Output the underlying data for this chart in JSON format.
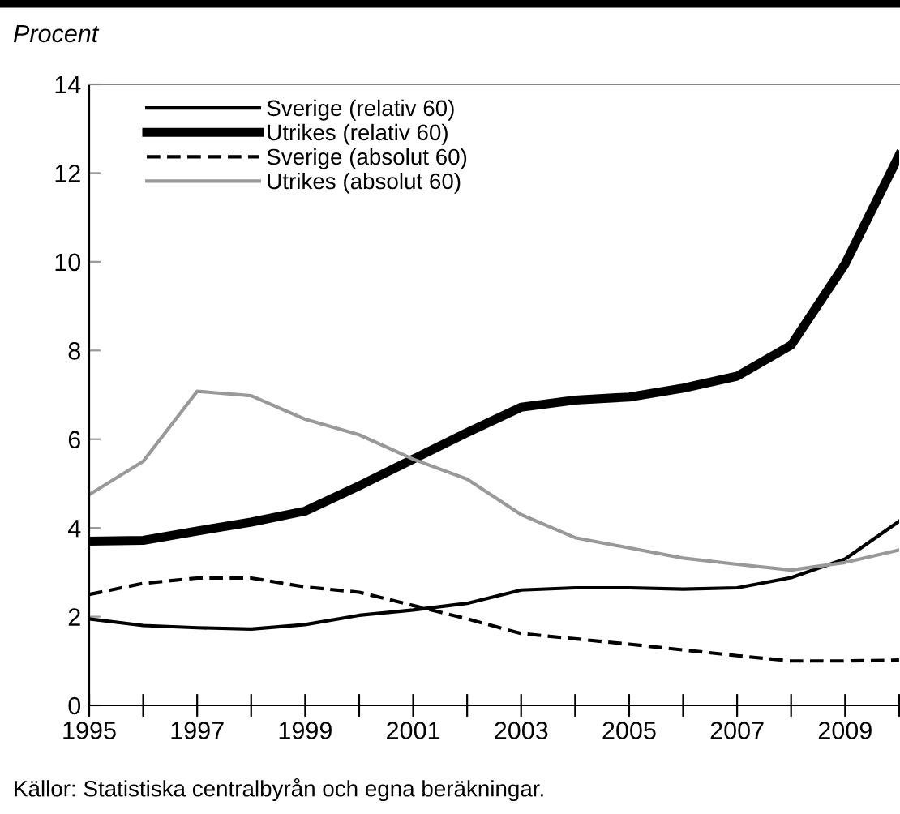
{
  "chart_data": {
    "type": "line",
    "ylabel": "Procent",
    "annotations": [
      "Källor: Statistiska centralbyrån och egna beräkningar."
    ],
    "x": [
      1995,
      1996,
      1997,
      1998,
      1999,
      2000,
      2001,
      2002,
      2003,
      2004,
      2005,
      2006,
      2007,
      2008,
      2009,
      2010
    ],
    "series": [
      {
        "name": "Sverige (relativ 60)",
        "color": "#000000",
        "line_style": "solid",
        "values": [
          1.95,
          1.8,
          1.75,
          1.72,
          1.82,
          2.03,
          2.15,
          2.3,
          2.6,
          2.65,
          2.65,
          2.62,
          2.65,
          2.88,
          3.3,
          4.15
        ]
      },
      {
        "name": "Utrikes (relativ 60)",
        "color": "#000000",
        "line_style": "solid",
        "values": [
          3.7,
          3.72,
          3.93,
          4.13,
          4.38,
          4.95,
          5.55,
          6.15,
          6.72,
          6.88,
          6.95,
          7.15,
          7.42,
          8.12,
          9.95,
          12.4
        ]
      },
      {
        "name": "Sverige (absolut 60)",
        "color": "#000000",
        "line_style": "dashed",
        "values": [
          2.5,
          2.75,
          2.87,
          2.87,
          2.67,
          2.55,
          2.25,
          1.95,
          1.62,
          1.5,
          1.38,
          1.25,
          1.12,
          1.0,
          1.0,
          1.02
        ]
      },
      {
        "name": "Utrikes (absolut 60)",
        "color": "#999999",
        "line_style": "solid",
        "values": [
          4.75,
          5.5,
          7.08,
          6.98,
          6.45,
          6.1,
          5.55,
          5.1,
          4.3,
          3.78,
          3.55,
          3.32,
          3.18,
          3.05,
          3.22,
          3.5
        ]
      }
    ],
    "xlim": [
      1995,
      2010
    ],
    "xticks": [
      1995,
      {
        "value": 1996,
        "label": null
      },
      1997,
      {
        "value": 1998,
        "label": null
      },
      1999,
      {
        "value": 2000,
        "label": null
      },
      2001,
      {
        "value": 2002,
        "label": null
      },
      2003,
      {
        "value": 2004,
        "label": null
      },
      2005,
      {
        "value": 2006,
        "label": null
      },
      2007,
      {
        "value": 2008,
        "label": null
      },
      2009,
      {
        "value": 2010,
        "label": null
      }
    ],
    "ylim": [
      0,
      14
    ],
    "yticks": [
      0,
      2,
      4,
      6,
      8,
      10,
      12,
      14
    ],
    "grid": false,
    "legend": "top left",
    "marker": "none"
  }
}
